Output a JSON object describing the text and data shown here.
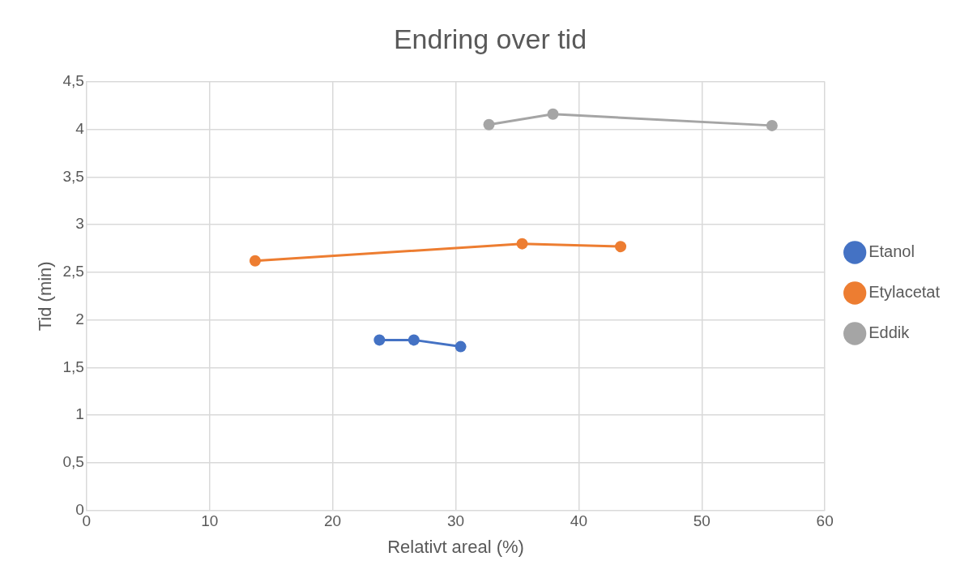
{
  "chart_data": {
    "type": "line",
    "title": "Endring over tid",
    "xlabel": "Relativt areal (%)",
    "ylabel": "Tid (min)",
    "series": [
      {
        "name": "Etanol",
        "color": "#4472c4",
        "x": [
          23.8,
          26.6,
          30.4
        ],
        "values": [
          1.79,
          1.79,
          1.72
        ]
      },
      {
        "name": "Etylacetat",
        "color": "#ed7d31",
        "x": [
          13.7,
          35.4,
          43.4
        ],
        "values": [
          2.62,
          2.8,
          2.77
        ]
      },
      {
        "name": "Eddik",
        "color": "#a5a5a5",
        "x": [
          32.7,
          37.9,
          55.7
        ],
        "values": [
          4.05,
          4.16,
          4.04
        ]
      }
    ],
    "xlim": [
      0,
      60
    ],
    "xticks": [
      0,
      10,
      20,
      30,
      40,
      50,
      60
    ],
    "ylim": [
      0,
      4.5
    ],
    "yticks": [
      0,
      {
        "value": 0.5,
        "label": "0,5"
      },
      1,
      {
        "value": 1.5,
        "label": "1,5"
      },
      2,
      {
        "value": 2.5,
        "label": "2,5"
      },
      3,
      {
        "value": 3.5,
        "label": "3,5"
      },
      4,
      {
        "value": 4.5,
        "label": "4,5"
      }
    ],
    "grid": true,
    "legend": "right",
    "marker": "circle",
    "line_style": "solid"
  }
}
